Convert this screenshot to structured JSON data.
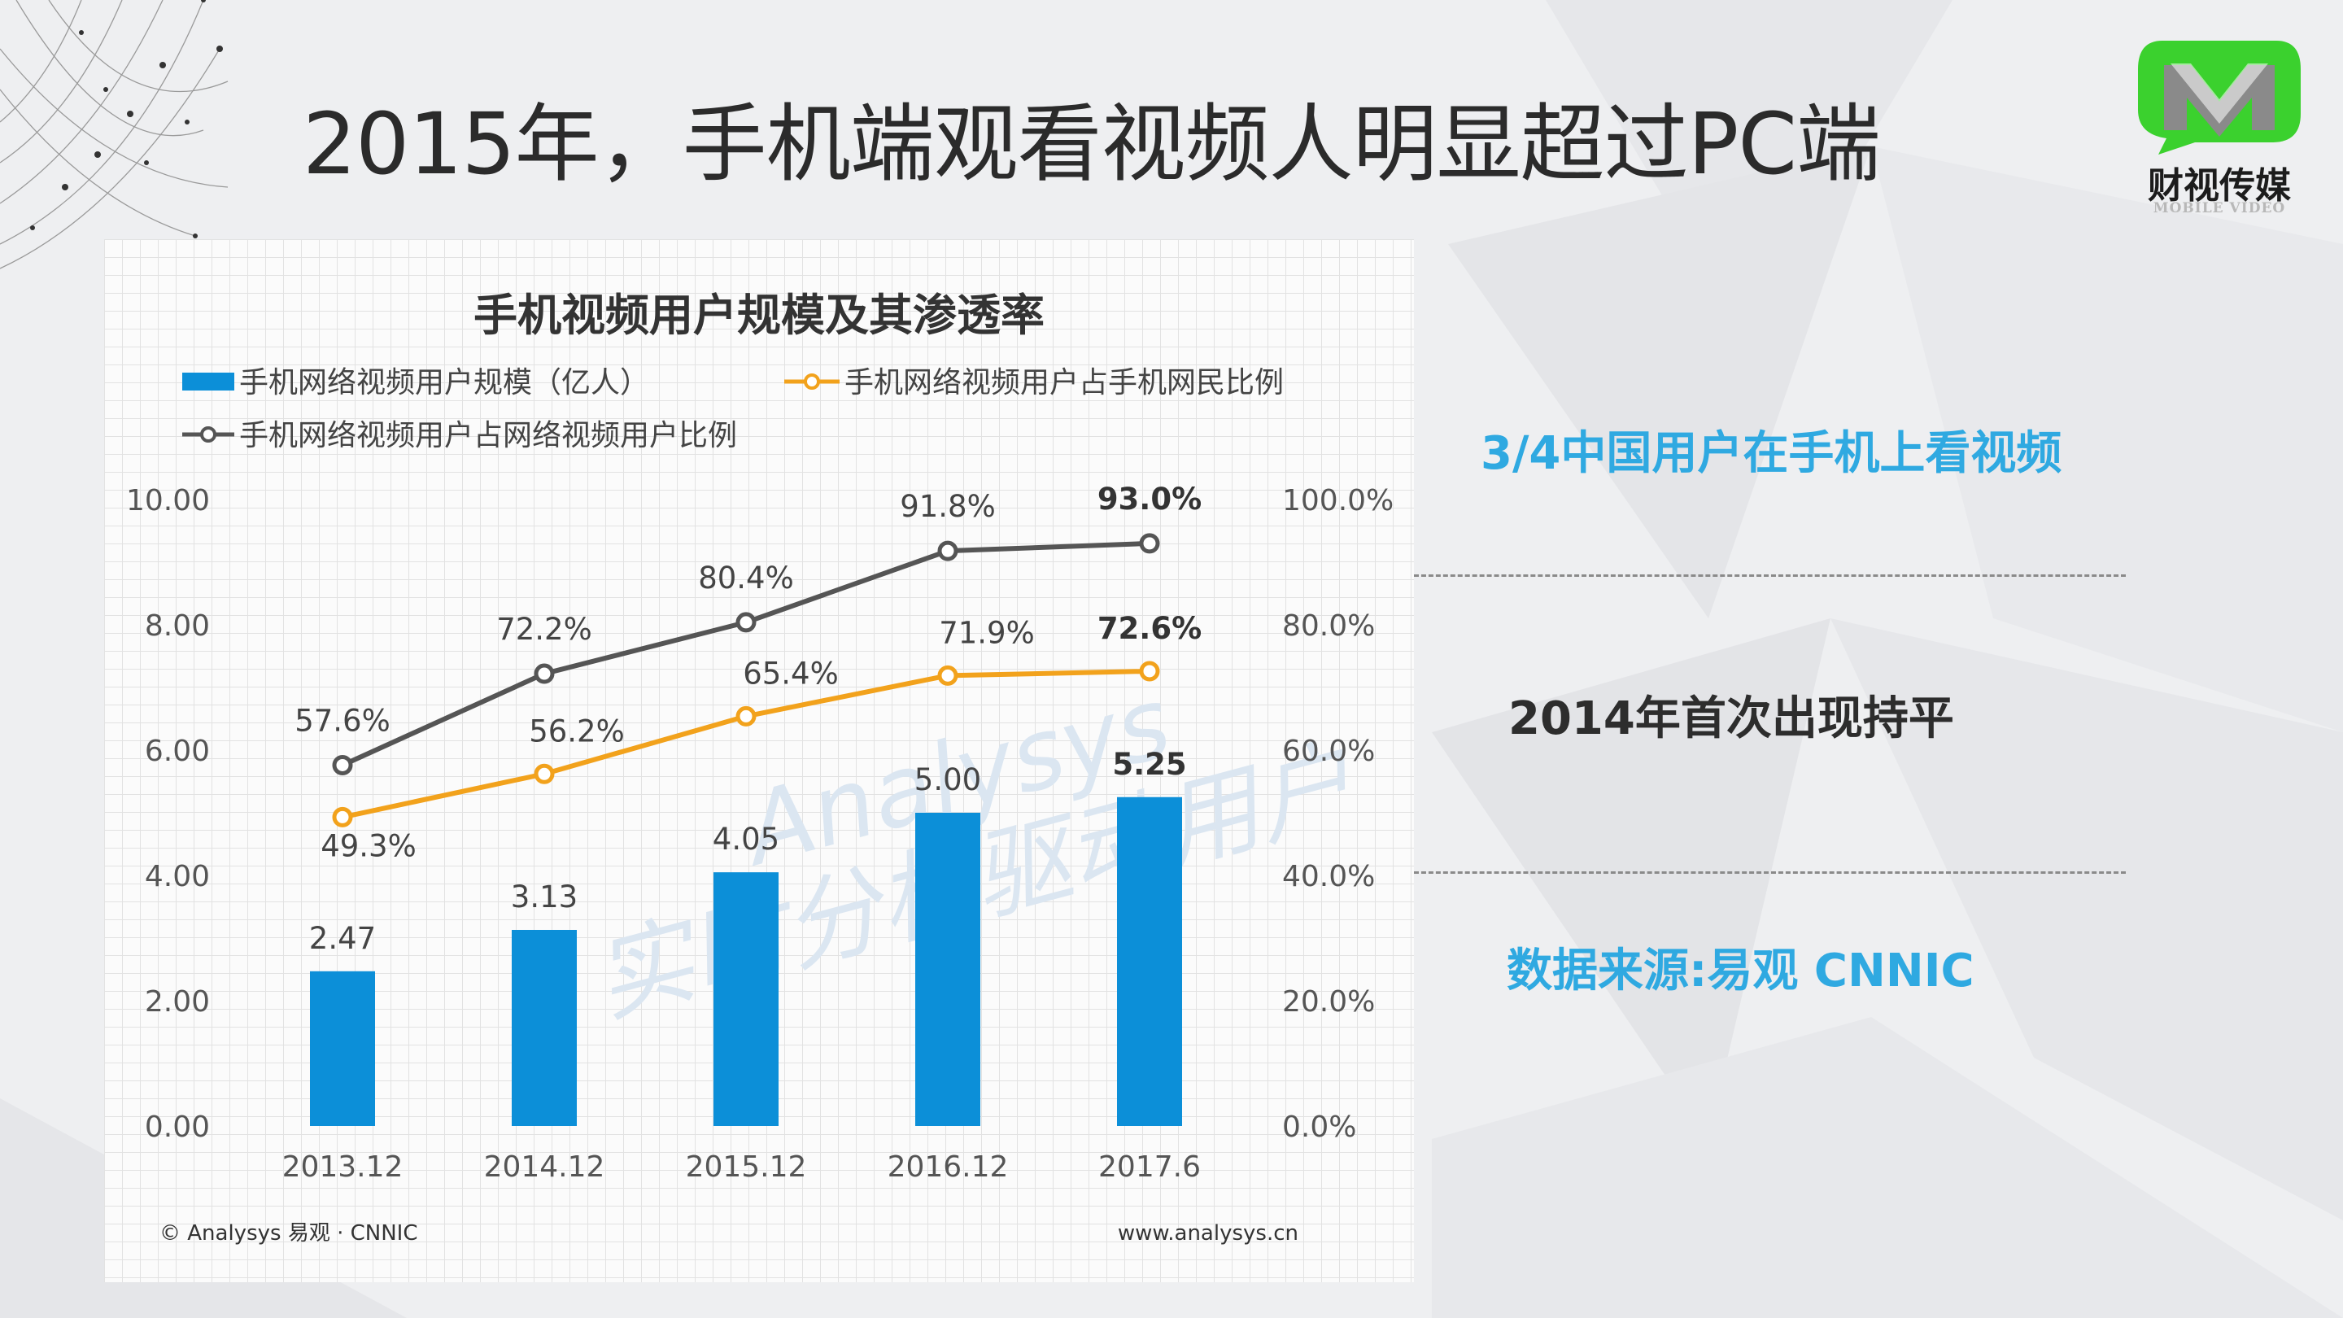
{
  "slide": {
    "title": "2015年，手机端观看视频人明显超过PC端"
  },
  "logo": {
    "name": "财视传媒",
    "subtitle": "MOBILE VIDEO",
    "colors": {
      "green": "#3bd12e",
      "gray": "#8a8a8a"
    }
  },
  "callouts": [
    {
      "text": "3/4中国用户在手机上看视频",
      "color": "#2fa9e1"
    },
    {
      "text": "2014年首次出现持平",
      "color": "#2d2d2d"
    },
    {
      "text": "数据来源:易观 CNNIC",
      "color": "#2fa9e1"
    }
  ],
  "chart_data": {
    "type": "bar",
    "title": "手机视频用户规模及其渗透率",
    "categories": [
      "2013.12",
      "2014.12",
      "2015.12",
      "2016.12",
      "2017.6"
    ],
    "y_left": {
      "range": [
        0,
        10
      ],
      "ticks": [
        "0.00",
        "2.00",
        "4.00",
        "6.00",
        "8.00",
        "10.00"
      ]
    },
    "y_right": {
      "range": [
        0,
        100
      ],
      "ticks": [
        "0.0%",
        "20.0%",
        "40.0%",
        "60.0%",
        "80.0%",
        "100.0%"
      ]
    },
    "series": [
      {
        "name": "手机网络视频用户规模（亿人）",
        "kind": "bar",
        "axis": "left",
        "color": "#0c8fd8",
        "values": [
          2.47,
          3.13,
          4.05,
          5.0,
          5.25
        ],
        "labels": [
          "2.47",
          "3.13",
          "4.05",
          "5.00",
          "5.25"
        ]
      },
      {
        "name": "手机网络视频用户占手机网民比例",
        "kind": "line",
        "axis": "right",
        "color": "#f2a21c",
        "values": [
          49.3,
          56.2,
          65.4,
          71.9,
          72.6
        ],
        "labels": [
          "49.3%",
          "56.2%",
          "65.4%",
          "71.9%",
          "72.6%"
        ]
      },
      {
        "name": "手机网络视频用户占网络视频用户比例",
        "kind": "line",
        "axis": "right",
        "color": "#555555",
        "values": [
          57.6,
          72.2,
          80.4,
          91.8,
          93.0
        ],
        "labels": [
          "57.6%",
          "72.2%",
          "80.4%",
          "91.8%",
          "93.0%"
        ]
      }
    ],
    "gridlines": true,
    "legend_position": "top-left",
    "watermark": "Analysys",
    "watermark_sub": "实时分析驱动用户",
    "source_left": "© Analysys 易观 · CNNIC",
    "source_right": "www.analysys.cn"
  }
}
